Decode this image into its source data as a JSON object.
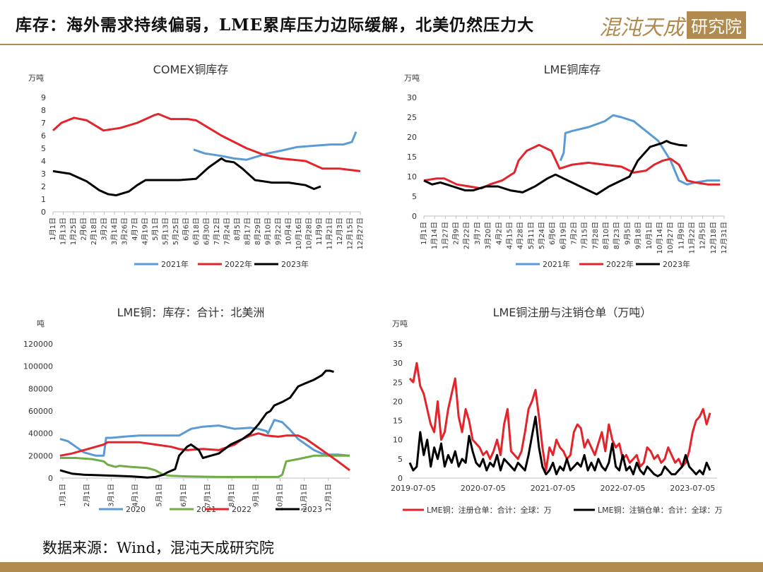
{
  "header": {
    "title": "库存：海外需求持续偏弱，LME累库压力边际缓解，北美仍然压力大",
    "logo_brand": "混沌天成",
    "logo_box": "研究院"
  },
  "footer": {
    "source": "数据来源：Wind，混沌天成研究院"
  },
  "colors": {
    "accent": "#b08a4e",
    "blue": "#5b9bd5",
    "red": "#e3242b",
    "black": "#000000",
    "green": "#70ad47"
  },
  "chart_data": [
    {
      "type": "line",
      "title": "COMEX铜库存",
      "unit": "万吨",
      "ylim": [
        0,
        9
      ],
      "yticks": [
        0,
        1,
        2,
        3,
        4,
        5,
        6,
        7,
        8,
        9
      ],
      "xtick_labels": [
        "1月1日",
        "1月13日",
        "1月25日",
        "2月6日",
        "2月18日",
        "3月2日",
        "3月14日",
        "3月26日",
        "4月7日",
        "4月19日",
        "5月1日",
        "5月13日",
        "5月25日",
        "6月6日",
        "6月18日",
        "6月30日",
        "7月12日",
        "7月24日",
        "8月5日",
        "8月17日",
        "8月29日",
        "9月10日",
        "9月22日",
        "10月4日",
        "10月16日",
        "10月28日",
        "11月9日",
        "11月21日",
        "12月3日",
        "12月15日",
        "12月27日"
      ],
      "xlim": [
        0,
        365
      ],
      "series": [
        {
          "name": "2021年",
          "color": "#5b9bd5",
          "x": [
            167,
            180,
            200,
            215,
            230,
            240,
            255,
            270,
            290,
            310,
            330,
            345,
            355,
            360
          ],
          "y": [
            4.9,
            4.6,
            4.4,
            4.2,
            4.1,
            4.3,
            4.6,
            4.8,
            5.1,
            5.2,
            5.3,
            5.3,
            5.5,
            6.3
          ]
        },
        {
          "name": "2022年",
          "color": "#e3242b",
          "x": [
            0,
            10,
            25,
            40,
            55,
            60,
            80,
            100,
            120,
            125,
            140,
            160,
            170,
            185,
            200,
            215,
            230,
            250,
            270,
            300,
            320,
            340,
            365
          ],
          "y": [
            6.4,
            7.0,
            7.4,
            7.2,
            6.6,
            6.4,
            6.6,
            7.0,
            7.6,
            7.7,
            7.3,
            7.3,
            7.2,
            6.6,
            6.0,
            5.5,
            5.0,
            4.5,
            4.2,
            4.0,
            3.4,
            3.4,
            3.2
          ]
        },
        {
          "name": "2023年",
          "color": "#000000",
          "x": [
            0,
            20,
            40,
            55,
            65,
            75,
            90,
            100,
            110,
            150,
            170,
            180,
            185,
            200,
            205,
            215,
            225,
            240,
            260,
            280,
            300,
            310,
            318
          ],
          "y": [
            3.2,
            3.0,
            2.4,
            1.7,
            1.4,
            1.3,
            1.6,
            2.1,
            2.5,
            2.5,
            2.6,
            3.2,
            3.5,
            4.2,
            4.0,
            3.9,
            3.4,
            2.5,
            2.3,
            2.3,
            2.1,
            1.8,
            2.0
          ]
        }
      ]
    },
    {
      "type": "line",
      "title": "LME铜库存",
      "unit": "万吨",
      "ylim": [
        0,
        30
      ],
      "yticks": [
        0,
        5,
        10,
        15,
        20,
        25,
        30
      ],
      "xtick_labels": [
        "1月1日",
        "1月14日",
        "1月27日",
        "2月9日",
        "2月22日",
        "3月7日",
        "3月20日",
        "4月2日",
        "4月15日",
        "4月28日",
        "5月11日",
        "5月24日",
        "6月6日",
        "6月19日",
        "7月2日",
        "7月15日",
        "7月28日",
        "8月10日",
        "8月23日",
        "9月5日",
        "9月18日",
        "10月1日",
        "10月14日",
        "10月27日",
        "11月9日",
        "11月22日",
        "12月5日",
        "12月18日",
        "12月31日"
      ],
      "xlim": [
        0,
        365
      ],
      "series": [
        {
          "name": "2021年",
          "color": "#5b9bd5",
          "x": [
            166,
            170,
            172,
            180,
            200,
            220,
            230,
            240,
            255,
            270,
            285,
            300,
            310,
            320,
            330,
            345,
            360
          ],
          "y": [
            14.0,
            16.0,
            21.0,
            21.5,
            22.5,
            24.0,
            25.5,
            25.0,
            24.0,
            21.5,
            19.0,
            14.0,
            9.0,
            8.0,
            8.5,
            9.0,
            9.0
          ]
        },
        {
          "name": "2022年",
          "color": "#e3242b",
          "x": [
            0,
            15,
            25,
            40,
            55,
            70,
            80,
            95,
            110,
            115,
            125,
            140,
            155,
            165,
            180,
            200,
            220,
            240,
            255,
            270,
            280,
            290,
            300,
            310,
            320,
            330,
            345,
            360
          ],
          "y": [
            9.0,
            9.5,
            9.5,
            8.0,
            7.5,
            7.0,
            8.0,
            9.0,
            11.0,
            14.0,
            16.5,
            18.0,
            16.5,
            12.0,
            13.0,
            13.5,
            13.0,
            12.5,
            11.0,
            11.5,
            13.0,
            14.0,
            14.5,
            13.0,
            9.0,
            8.5,
            8.0,
            8.0
          ]
        },
        {
          "name": "2023年",
          "color": "#000000",
          "x": [
            0,
            10,
            20,
            35,
            50,
            60,
            75,
            90,
            105,
            120,
            135,
            150,
            160,
            170,
            180,
            190,
            200,
            210,
            225,
            240,
            250,
            260,
            275,
            290,
            295,
            300,
            310,
            320
          ],
          "y": [
            9.0,
            8.0,
            8.5,
            7.5,
            6.5,
            6.5,
            7.5,
            7.5,
            6.5,
            6.0,
            7.5,
            9.5,
            10.5,
            9.5,
            8.5,
            7.5,
            6.5,
            5.5,
            7.5,
            9.0,
            10.0,
            14.0,
            17.5,
            18.5,
            19.0,
            18.5,
            18.0,
            17.8
          ]
        }
      ]
    },
    {
      "type": "line",
      "title": "LME铜：库存：合计：北美洲",
      "unit": "吨",
      "ylim": [
        0,
        120000
      ],
      "yticks": [
        0,
        20000,
        40000,
        60000,
        80000,
        100000,
        120000
      ],
      "xtick_labels": [
        "1月1日",
        "2月1日",
        "3月1日",
        "4月1日",
        "5月1日",
        "6月1日",
        "7月1日",
        "8月1日",
        "9月1日",
        "10月1日",
        "11月1日",
        "12月1日"
      ],
      "xlim": [
        0,
        365
      ],
      "series": [
        {
          "name": "2020",
          "color": "#5b9bd5",
          "x": [
            0,
            10,
            20,
            30,
            45,
            55,
            58,
            65,
            80,
            100,
            110,
            120,
            125,
            130,
            150,
            165,
            180,
            200,
            220,
            240,
            250,
            260,
            262,
            270,
            280,
            290,
            300,
            310,
            320,
            330,
            340,
            350,
            365
          ],
          "y": [
            35000,
            33000,
            28000,
            23000,
            20000,
            20000,
            36000,
            36000,
            37000,
            38000,
            38000,
            38000,
            38000,
            38000,
            38000,
            44000,
            46000,
            47000,
            44000,
            45000,
            44000,
            42000,
            40000,
            52000,
            50000,
            43000,
            35000,
            30000,
            25000,
            22000,
            21000,
            21000,
            20000
          ]
        },
        {
          "name": "2021",
          "color": "#70ad47",
          "x": [
            0,
            20,
            40,
            55,
            60,
            70,
            75,
            90,
            110,
            120,
            130,
            140,
            160,
            200,
            250,
            275,
            280,
            285,
            300,
            320,
            340,
            365
          ],
          "y": [
            18000,
            18000,
            17000,
            15000,
            12000,
            10000,
            11000,
            10000,
            9000,
            7000,
            3000,
            2000,
            1500,
            1000,
            1000,
            1000,
            3000,
            15000,
            17000,
            20000,
            20000,
            20000
          ]
        },
        {
          "name": "2022",
          "color": "#e3242b",
          "x": [
            0,
            15,
            30,
            45,
            55,
            60,
            80,
            100,
            120,
            140,
            150,
            160,
            180,
            200,
            220,
            230,
            240,
            250,
            260,
            275,
            285,
            300,
            310,
            320,
            330,
            340,
            350,
            365
          ],
          "y": [
            20000,
            22000,
            25000,
            28000,
            30000,
            32000,
            32000,
            32000,
            30000,
            28000,
            26000,
            25000,
            26000,
            25000,
            30000,
            35000,
            38000,
            40000,
            38000,
            37000,
            38000,
            38000,
            35000,
            30000,
            25000,
            20000,
            15000,
            7000
          ]
        },
        {
          "name": "2023",
          "color": "#000000",
          "x": [
            0,
            15,
            30,
            50,
            70,
            90,
            100,
            110,
            120,
            130,
            135,
            145,
            150,
            160,
            165,
            175,
            180,
            190,
            200,
            215,
            230,
            240,
            250,
            260,
            265,
            270,
            280,
            290,
            300,
            310,
            320,
            330,
            335,
            340,
            345
          ],
          "y": [
            7000,
            4000,
            3000,
            2500,
            2000,
            1500,
            1000,
            500,
            1000,
            3000,
            5000,
            8000,
            20000,
            28000,
            30000,
            25000,
            18000,
            20000,
            22000,
            30000,
            35000,
            40000,
            48000,
            58000,
            60000,
            65000,
            68000,
            72000,
            82000,
            85000,
            88000,
            92000,
            96000,
            96000,
            95000
          ]
        }
      ]
    },
    {
      "type": "line",
      "title": "LME铜注册与注销仓单（万吨）",
      "unit": "万吨",
      "ylim": [
        0,
        35
      ],
      "yticks": [
        0,
        5,
        10,
        15,
        20,
        25,
        30,
        35
      ],
      "xtick_labels": [
        "2019-07-05",
        "2020-07-05",
        "2021-07-05",
        "2022-07-05",
        "2023-07-05"
      ],
      "xlim": [
        0,
        4.4
      ],
      "series": [
        {
          "name": "LME铜：注册仓单：合计：全球：万",
          "color": "#e3242b",
          "x": [
            0,
            0.05,
            0.1,
            0.15,
            0.2,
            0.25,
            0.3,
            0.35,
            0.4,
            0.45,
            0.5,
            0.55,
            0.6,
            0.65,
            0.7,
            0.75,
            0.8,
            0.85,
            0.9,
            0.95,
            1.0,
            1.05,
            1.1,
            1.15,
            1.2,
            1.25,
            1.3,
            1.35,
            1.4,
            1.45,
            1.5,
            1.55,
            1.6,
            1.65,
            1.7,
            1.75,
            1.8,
            1.85,
            1.9,
            1.95,
            2.0,
            2.05,
            2.1,
            2.15,
            2.2,
            2.25,
            2.3,
            2.35,
            2.4,
            2.45,
            2.5,
            2.55,
            2.6,
            2.65,
            2.7,
            2.75,
            2.8,
            2.85,
            2.9,
            2.95,
            3.0,
            3.05,
            3.1,
            3.15,
            3.2,
            3.25,
            3.3,
            3.35,
            3.4,
            3.45,
            3.5,
            3.55,
            3.6,
            3.65,
            3.7,
            3.75,
            3.8,
            3.85,
            3.9,
            3.95,
            4.0,
            4.05,
            4.1,
            4.15,
            4.2,
            4.25,
            4.3
          ],
          "y": [
            26,
            25,
            30,
            24,
            22,
            18,
            14,
            12,
            20,
            10,
            12,
            18,
            22,
            26,
            16,
            12,
            18,
            15,
            10,
            9,
            8,
            6,
            7,
            5,
            7,
            10,
            6,
            14,
            18,
            7,
            6,
            5,
            7,
            12,
            18,
            20,
            23,
            16,
            8,
            2,
            8,
            6,
            10,
            8,
            7,
            5,
            6,
            12,
            14,
            13,
            8,
            10,
            8,
            6,
            9,
            12,
            7,
            14,
            10,
            8,
            9,
            5,
            6,
            4,
            5,
            6,
            3,
            4,
            8,
            7,
            5,
            6,
            4,
            5,
            8,
            6,
            4,
            5,
            3,
            4,
            7,
            12,
            15,
            16,
            18,
            14,
            17
          ]
        },
        {
          "name": "LME铜：注销仓单：合计：全球：万",
          "color": "#000000",
          "x": [
            0,
            0.05,
            0.1,
            0.15,
            0.2,
            0.25,
            0.3,
            0.35,
            0.4,
            0.45,
            0.5,
            0.55,
            0.6,
            0.65,
            0.7,
            0.75,
            0.8,
            0.85,
            0.9,
            0.95,
            1.0,
            1.05,
            1.1,
            1.15,
            1.2,
            1.25,
            1.3,
            1.35,
            1.4,
            1.45,
            1.5,
            1.55,
            1.6,
            1.65,
            1.7,
            1.75,
            1.8,
            1.85,
            1.9,
            1.95,
            2.0,
            2.05,
            2.1,
            2.15,
            2.2,
            2.25,
            2.3,
            2.35,
            2.4,
            2.45,
            2.5,
            2.55,
            2.6,
            2.65,
            2.7,
            2.75,
            2.8,
            2.85,
            2.9,
            2.95,
            3.0,
            3.05,
            3.1,
            3.15,
            3.2,
            3.25,
            3.3,
            3.35,
            3.4,
            3.45,
            3.5,
            3.55,
            3.6,
            3.65,
            3.7,
            3.75,
            3.8,
            3.85,
            3.9,
            3.95,
            4.0,
            4.05,
            4.1,
            4.15,
            4.2,
            4.25,
            4.3
          ],
          "y": [
            4,
            2,
            3,
            12,
            6,
            10,
            3,
            8,
            5,
            9,
            3,
            6,
            4,
            7,
            3,
            5,
            4,
            11,
            7,
            4,
            3,
            5,
            2,
            4,
            3,
            6,
            2,
            5,
            4,
            3,
            2,
            4,
            3,
            2,
            6,
            11,
            16,
            8,
            3,
            1,
            2,
            4,
            1,
            3,
            2,
            5,
            2,
            3,
            4,
            3,
            6,
            2,
            4,
            2,
            5,
            3,
            2,
            4,
            9,
            3,
            2,
            6,
            2,
            3,
            1,
            4,
            2,
            1,
            3,
            2,
            1,
            0.5,
            1,
            3,
            2,
            1,
            1,
            2,
            3,
            6,
            3,
            2,
            1,
            2,
            1,
            4,
            2
          ]
        }
      ]
    }
  ]
}
